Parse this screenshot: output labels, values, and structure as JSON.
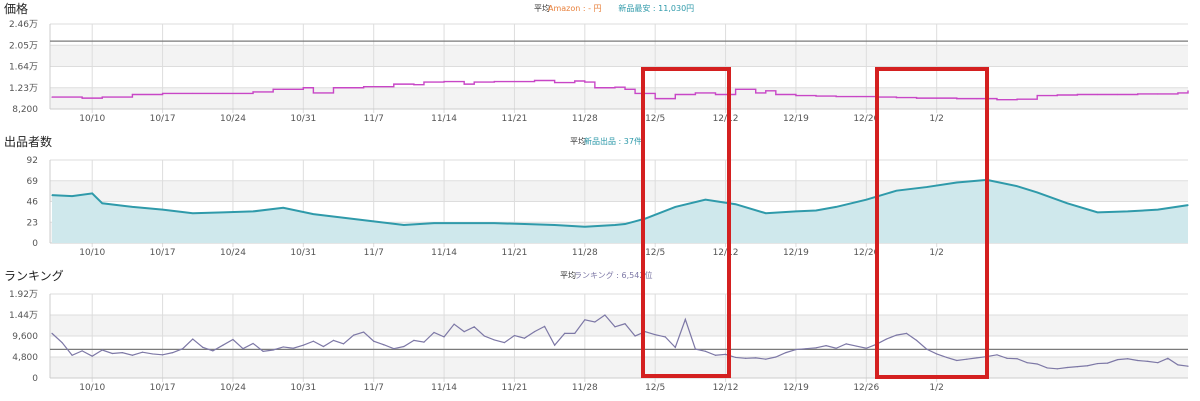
{
  "colors": {
    "price": "#c846c6",
    "sellers_line": "#2f9aaa",
    "sellers_fill": "#cfe8ec",
    "ranking": "#7d78a6",
    "amazon": "#e8803c",
    "legend_teal": "#2f9aaa",
    "ref_line": "#7a7a7a",
    "grid": "#dddddd",
    "band": "#f3f3f3",
    "highlight": "#d42020"
  },
  "x_ticks": [
    "10/10",
    "10/17",
    "10/24",
    "10/31",
    "11/7",
    "11/14",
    "11/21",
    "11/28",
    "12/5",
    "12/12",
    "12/19",
    "12/26",
    "1/2"
  ],
  "chart_data": [
    {
      "type": "line",
      "title": "価格",
      "legend": {
        "avg": "平均",
        "items": [
          {
            "label": "Amazon : - 円",
            "color_key": "amazon"
          },
          {
            "label": "新品最安 : 11,030円",
            "color_key": "legend_teal"
          }
        ]
      },
      "y_ticks": [
        "2.46万",
        "2.05万",
        "1.64万",
        "1.23万",
        "8,200"
      ],
      "ylim": [
        8200,
        24600
      ],
      "ref_line": 21300,
      "x": [
        0,
        3,
        5,
        8,
        11,
        14,
        17,
        20,
        22,
        25,
        26,
        28,
        31,
        34,
        36,
        37,
        39,
        41,
        42,
        44,
        46,
        48,
        50,
        52,
        53,
        54,
        56,
        57,
        58,
        60,
        62,
        64,
        66,
        68,
        70,
        71,
        72,
        74,
        76,
        78,
        80,
        82,
        84,
        86,
        88,
        90,
        92,
        94,
        96,
        98,
        100,
        102,
        104,
        106,
        108,
        110,
        112,
        113
      ],
      "values": [
        10500,
        10300,
        10500,
        11000,
        11200,
        11200,
        11200,
        11500,
        12000,
        12300,
        11300,
        12300,
        12500,
        13000,
        12900,
        13400,
        13500,
        13000,
        13400,
        13500,
        13500,
        13700,
        13300,
        13600,
        13400,
        12300,
        12400,
        12000,
        11200,
        10200,
        11000,
        11300,
        11000,
        12000,
        11300,
        11700,
        11000,
        10800,
        10700,
        10600,
        10600,
        10500,
        10400,
        10300,
        10300,
        10200,
        10200,
        10000,
        10100,
        10800,
        10900,
        11000,
        11000,
        11000,
        11100,
        11100,
        11300,
        11700
      ]
    },
    {
      "type": "area",
      "title": "出品者数",
      "legend": {
        "avg": "平均",
        "items": [
          {
            "label": "新品出品 : 37件",
            "color_key": "legend_teal"
          }
        ]
      },
      "y_ticks": [
        "92",
        "69",
        "46",
        "23",
        "0"
      ],
      "ylim": [
        0,
        92
      ],
      "x": [
        0,
        2,
        4,
        5,
        8,
        11,
        14,
        17,
        20,
        23,
        26,
        29,
        32,
        35,
        38,
        41,
        44,
        47,
        50,
        53,
        56,
        57,
        59,
        62,
        65,
        68,
        71,
        74,
        76,
        78,
        81,
        84,
        87,
        90,
        93,
        96,
        98,
        101,
        104,
        107,
        110,
        113
      ],
      "values": [
        53,
        52,
        55,
        44,
        40,
        37,
        33,
        34,
        35,
        39,
        32,
        28,
        24,
        20,
        22,
        22,
        22,
        21,
        20,
        18,
        20,
        21,
        27,
        40,
        48,
        43,
        33,
        35,
        36,
        40,
        48,
        58,
        62,
        67,
        70,
        63,
        56,
        44,
        34,
        35,
        37,
        42
      ]
    },
    {
      "type": "line",
      "title": "ランキング",
      "legend": {
        "avg": "平均",
        "items": [
          {
            "label": "ランキング : 6,542位",
            "color_key": "ranking"
          }
        ]
      },
      "y_ticks": [
        "1.92万",
        "1.44万",
        "9,600",
        "4,800",
        "0"
      ],
      "ylim": [
        0,
        19200
      ],
      "ref_line": 6542,
      "x": [
        0,
        1,
        2,
        3,
        4,
        5,
        6,
        7,
        8,
        9,
        10,
        11,
        12,
        13,
        14,
        15,
        16,
        17,
        18,
        19,
        20,
        21,
        22,
        23,
        24,
        25,
        26,
        27,
        28,
        29,
        30,
        31,
        32,
        33,
        34,
        35,
        36,
        37,
        38,
        39,
        40,
        41,
        42,
        43,
        44,
        45,
        46,
        47,
        48,
        49,
        50,
        51,
        52,
        53,
        54,
        55,
        56,
        57,
        58,
        59,
        60,
        61,
        62,
        63,
        64,
        65,
        66,
        67,
        68,
        69,
        70,
        71,
        72,
        73,
        74,
        75,
        76,
        77,
        78,
        79,
        80,
        81,
        82,
        83,
        84,
        85,
        86,
        87,
        88,
        89,
        90,
        91,
        92,
        93,
        94,
        95,
        96,
        97,
        98,
        99,
        100,
        101,
        102,
        103,
        104,
        105,
        106,
        107,
        108,
        109,
        110,
        111,
        112,
        113
      ],
      "values": [
        10200,
        8100,
        5200,
        6200,
        5000,
        6400,
        5600,
        5800,
        5200,
        5900,
        5500,
        5300,
        5800,
        6700,
        8900,
        7000,
        6200,
        7500,
        8800,
        6700,
        7900,
        6100,
        6400,
        7100,
        6800,
        7500,
        8400,
        7200,
        8600,
        7800,
        9800,
        10500,
        8400,
        7600,
        6700,
        7200,
        8600,
        8200,
        10400,
        9400,
        12300,
        10600,
        11700,
        9600,
        8700,
        8100,
        9700,
        9100,
        10600,
        11800,
        7500,
        10200,
        10200,
        13300,
        12800,
        14400,
        11700,
        12400,
        9600,
        10600,
        9900,
        9400,
        7000,
        13400,
        6600,
        6100,
        5200,
        5400,
        4700,
        4500,
        4600,
        4300,
        4800,
        5800,
        6500,
        6700,
        6900,
        7400,
        6800,
        7800,
        7300,
        6800,
        7700,
        8900,
        9800,
        10200,
        8600,
        6600,
        5500,
        4700,
        4000,
        4300,
        4600,
        4900,
        5300,
        4500,
        4400,
        3500,
        3200,
        2300,
        2100,
        2400,
        2600,
        2800,
        3300,
        3400,
        4200,
        4400,
        4000,
        3800,
        3500,
        4500,
        3000,
        2700
      ]
    }
  ]
}
